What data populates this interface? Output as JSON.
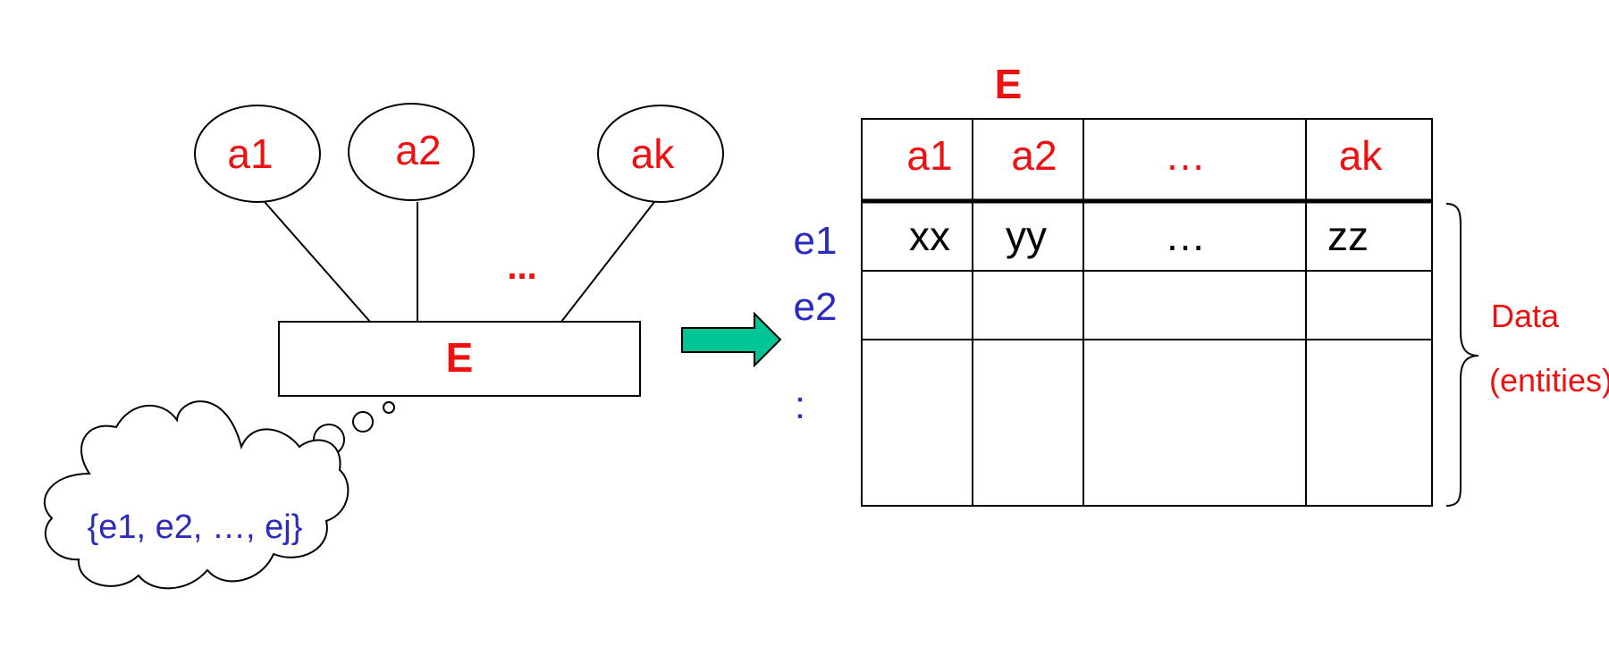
{
  "er_diagram": {
    "attributes": [
      "a1",
      "a2",
      "ak"
    ],
    "attr_ellipsis": "...",
    "entity_label": "E",
    "instances_set": "{e1, e2, …, ej}"
  },
  "table": {
    "title": "E",
    "columns": [
      "a1",
      "a2",
      "…",
      "ak"
    ],
    "row_labels": [
      "e1",
      "e2",
      ":"
    ],
    "rows": [
      [
        "xx",
        "yy",
        "…",
        "zz"
      ]
    ],
    "brace_label_line1": "Data",
    "brace_label_line2": "(entities)"
  },
  "colors": {
    "red": "#ee1111",
    "blue": "#2b2bbd",
    "arrow": "#00c493",
    "line": "#000000"
  }
}
